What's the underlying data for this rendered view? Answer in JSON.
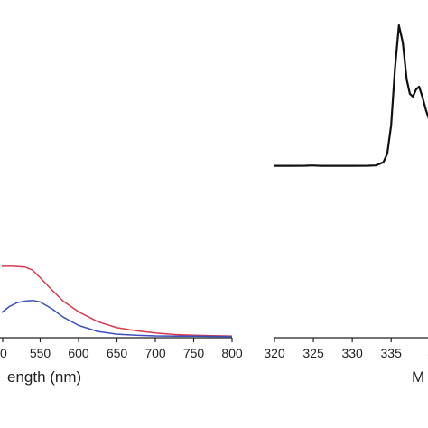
{
  "chart_data": [
    {
      "type": "line",
      "xlabel": "ength (nm)",
      "ylabel": "",
      "xlim": [
        500,
        800
      ],
      "ylim": [
        0,
        1.0
      ],
      "x_ticks": [
        "0",
        "550",
        "600",
        "650",
        "700",
        "750",
        "800"
      ],
      "x_tick_values": [
        500,
        550,
        600,
        650,
        700,
        750,
        800
      ],
      "series": [
        {
          "color": "#d9394f",
          "x": [
            500,
            515,
            530,
            540,
            550,
            565,
            580,
            600,
            625,
            650,
            675,
            700,
            725,
            750,
            775,
            800
          ],
          "y": [
            0.93,
            0.93,
            0.92,
            0.88,
            0.78,
            0.62,
            0.47,
            0.33,
            0.2,
            0.12,
            0.08,
            0.05,
            0.03,
            0.02,
            0.015,
            0.01
          ]
        },
        {
          "color": "#3b4fbf",
          "x": [
            500,
            510,
            520,
            530,
            540,
            550,
            565,
            580,
            600,
            625,
            650,
            675,
            700,
            725,
            750,
            775,
            800
          ],
          "y": [
            0.32,
            0.4,
            0.45,
            0.47,
            0.48,
            0.46,
            0.37,
            0.26,
            0.15,
            0.07,
            0.035,
            0.02,
            0.012,
            0.01,
            0.008,
            0.006,
            0.005
          ]
        }
      ]
    },
    {
      "type": "line",
      "xlabel": "M",
      "ylabel": "",
      "xlim": [
        320,
        340.2
      ],
      "ylim": [
        0,
        1.0
      ],
      "x_ticks": [
        "320",
        "325",
        "330",
        "335",
        "3"
      ],
      "x_tick_values": [
        320,
        325,
        330,
        335,
        340
      ],
      "series": [
        {
          "color": "#111111",
          "x": [
            320,
            322,
            324,
            324.8,
            326,
            328,
            330,
            332,
            333,
            334,
            334.5,
            335,
            335.5,
            336,
            336.5,
            337,
            337.4,
            337.8,
            338.2,
            338.6,
            339,
            339.5,
            340,
            340.2
          ],
          "y": [
            0.015,
            0.015,
            0.016,
            0.018,
            0.015,
            0.015,
            0.015,
            0.016,
            0.018,
            0.04,
            0.1,
            0.3,
            0.7,
            1.0,
            0.88,
            0.62,
            0.52,
            0.5,
            0.55,
            0.57,
            0.5,
            0.4,
            0.32,
            0.3
          ]
        }
      ]
    }
  ]
}
